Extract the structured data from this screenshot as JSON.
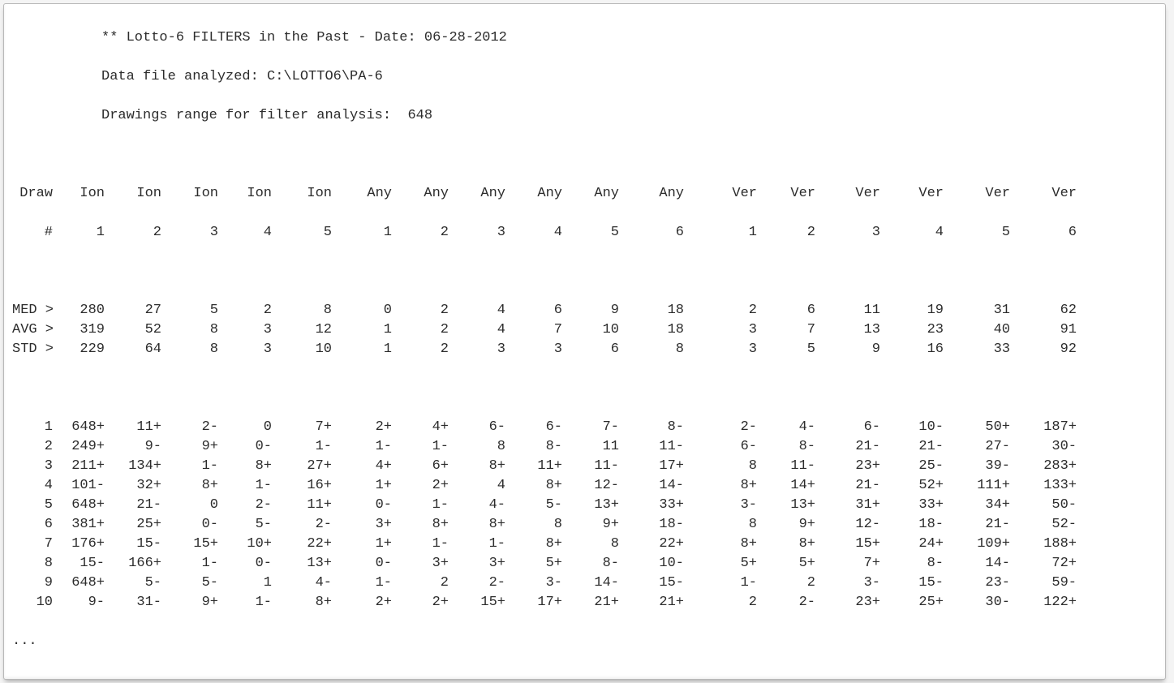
{
  "header": {
    "title_line": "** Lotto-6 FILTERS in the Past - Date: 06-28-2012",
    "file_line": "Data file analyzed: C:\\LOTTO6\\PA-6",
    "range_line": "Drawings range for filter analysis:  648"
  },
  "colors": {
    "background": "#ffffff",
    "text": "#2c2c2c",
    "border": "#b8b8b8"
  },
  "typography": {
    "font_family": "Courier New",
    "font_size": 17,
    "line_height": 24
  },
  "columns_top": [
    "Draw",
    "Ion",
    "Ion",
    "Ion",
    "Ion",
    "Ion",
    "Any",
    "Any",
    "Any",
    "Any",
    "Any",
    "Any",
    "Ver",
    "Ver",
    "Ver",
    "Ver",
    "Ver",
    "Ver"
  ],
  "columns_bottom": [
    "#",
    "1",
    "2",
    "3",
    "4",
    "5",
    "1",
    "2",
    "3",
    "4",
    "5",
    "6",
    "1",
    "2",
    "3",
    "4",
    "5",
    "6"
  ],
  "stat_rows": [
    {
      "label": "MED >",
      "v": [
        "280",
        "27",
        "5",
        "2",
        "8",
        "0",
        "2",
        "4",
        "6",
        "9",
        "18",
        "2",
        "6",
        "11",
        "19",
        "31",
        "62"
      ]
    },
    {
      "label": "AVG >",
      "v": [
        "319",
        "52",
        "8",
        "3",
        "12",
        "1",
        "2",
        "4",
        "7",
        "10",
        "18",
        "3",
        "7",
        "13",
        "23",
        "40",
        "91"
      ]
    },
    {
      "label": "STD >",
      "v": [
        "229",
        "64",
        "8",
        "3",
        "10",
        "1",
        "2",
        "3",
        "3",
        "6",
        "8",
        "3",
        "5",
        "9",
        "16",
        "33",
        "92"
      ]
    }
  ],
  "data_rows": [
    {
      "n": "1",
      "v": [
        "648+",
        "11+",
        "2-",
        "0",
        "7+",
        "2+",
        "4+",
        "6-",
        "6-",
        "7-",
        "8-",
        "2-",
        "4-",
        "6-",
        "10-",
        "50+",
        "187+"
      ]
    },
    {
      "n": "2",
      "v": [
        "249+",
        "9-",
        "9+",
        "0-",
        "1-",
        "1-",
        "1-",
        "8",
        "8-",
        "11",
        "11-",
        "6-",
        "8-",
        "21-",
        "21-",
        "27-",
        "30-"
      ]
    },
    {
      "n": "3",
      "v": [
        "211+",
        "134+",
        "1-",
        "8+",
        "27+",
        "4+",
        "6+",
        "8+",
        "11+",
        "11-",
        "17+",
        "8",
        "11-",
        "23+",
        "25-",
        "39-",
        "283+"
      ]
    },
    {
      "n": "4",
      "v": [
        "101-",
        "32+",
        "8+",
        "1-",
        "16+",
        "1+",
        "2+",
        "4",
        "8+",
        "12-",
        "14-",
        "8+",
        "14+",
        "21-",
        "52+",
        "111+",
        "133+"
      ]
    },
    {
      "n": "5",
      "v": [
        "648+",
        "21-",
        "0",
        "2-",
        "11+",
        "0-",
        "1-",
        "4-",
        "5-",
        "13+",
        "33+",
        "3-",
        "13+",
        "31+",
        "33+",
        "34+",
        "50-"
      ]
    },
    {
      "n": "6",
      "v": [
        "381+",
        "25+",
        "0-",
        "5-",
        "2-",
        "3+",
        "8+",
        "8+",
        "8",
        "9+",
        "18-",
        "8",
        "9+",
        "12-",
        "18-",
        "21-",
        "52-"
      ]
    },
    {
      "n": "7",
      "v": [
        "176+",
        "15-",
        "15+",
        "10+",
        "22+",
        "1+",
        "1-",
        "1-",
        "8+",
        "8",
        "22+",
        "8+",
        "8+",
        "15+",
        "24+",
        "109+",
        "188+"
      ]
    },
    {
      "n": "8",
      "v": [
        "15-",
        "166+",
        "1-",
        "0-",
        "13+",
        "0-",
        "3+",
        "3+",
        "5+",
        "8-",
        "10-",
        "5+",
        "5+",
        "7+",
        "8-",
        "14-",
        "72+"
      ]
    },
    {
      "n": "9",
      "v": [
        "648+",
        "5-",
        "5-",
        "1",
        "4-",
        "1-",
        "2",
        "2-",
        "3-",
        "14-",
        "15-",
        "1-",
        "2",
        "3-",
        "15-",
        "23-",
        "59-"
      ]
    },
    {
      "n": "10",
      "v": [
        "9-",
        "31-",
        "9+",
        "1-",
        "8+",
        "2+",
        "2+",
        "15+",
        "17+",
        "21+",
        "21+",
        "2",
        "2-",
        "23+",
        "25+",
        "30-",
        "122+"
      ]
    }
  ],
  "ellipsis": "..."
}
